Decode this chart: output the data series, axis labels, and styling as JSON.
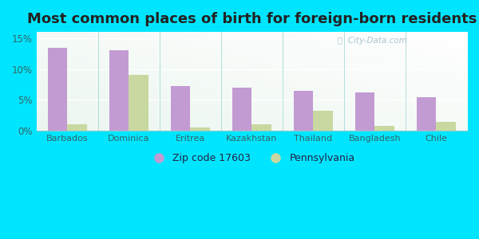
{
  "title": "Most common places of birth for foreign-born residents",
  "categories": [
    "Barbados",
    "Dominica",
    "Eritrea",
    "Kazakhstan",
    "Thailand",
    "Bangladesh",
    "Chile"
  ],
  "zip_values": [
    13.5,
    13.0,
    7.3,
    7.0,
    6.5,
    6.2,
    5.5
  ],
  "pa_values": [
    1.0,
    9.0,
    0.6,
    1.0,
    3.3,
    0.8,
    1.5
  ],
  "zip_color": "#c39bd3",
  "pa_color": "#c8d8a0",
  "zip_label": "Zip code 17603",
  "pa_label": "Pennsylvania",
  "ylim": [
    0,
    16
  ],
  "yticks": [
    0,
    5,
    10,
    15
  ],
  "ytick_labels": [
    "0%",
    "5%",
    "10%",
    "15%"
  ],
  "fig_bg_color": "#00e5ff",
  "title_fontsize": 13,
  "bar_width": 0.32
}
